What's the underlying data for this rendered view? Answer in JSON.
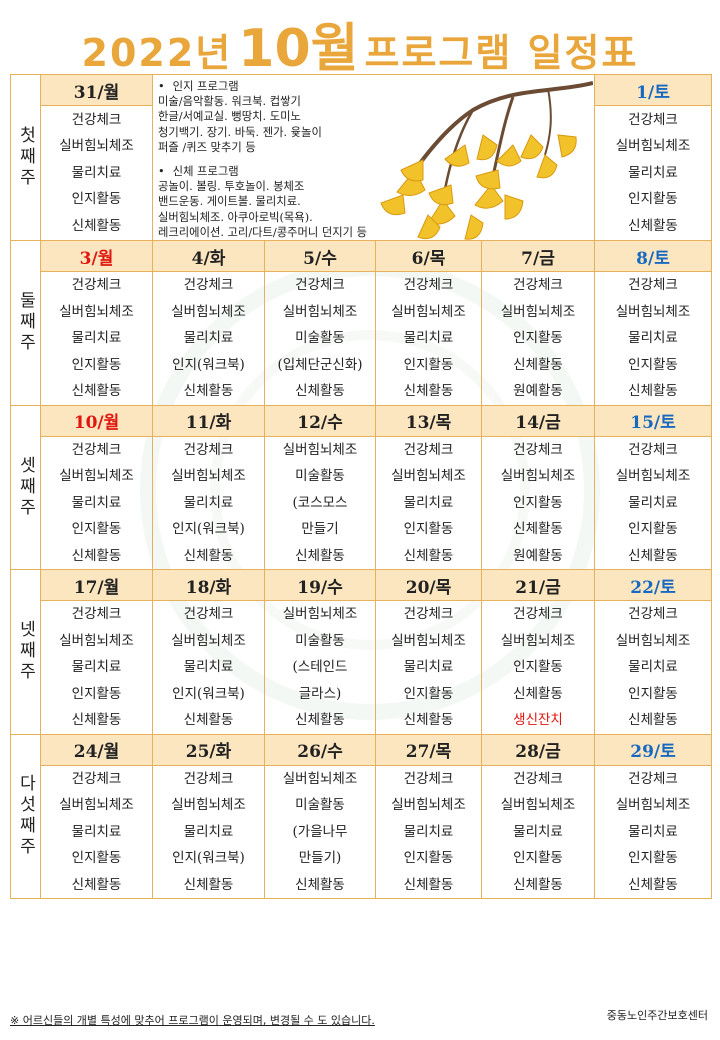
{
  "title": {
    "part1": "2022년",
    "part2": "10월",
    "part3": "프로그램 일정표"
  },
  "program_info": {
    "cognitive": {
      "heading": "인지 프로그램",
      "lines": [
        "미술/음악활동. 워크북. 컵쌓기",
        "한글/서예교실. 뻥땅치. 도미노",
        "청기백기. 장기. 바둑. 젠가. 윷놀이",
        "퍼즐 /퀴즈 맞추기 등"
      ]
    },
    "physical": {
      "heading": "신체 프로그램",
      "lines": [
        "공놀이. 볼링. 투호놀이. 봉체조",
        "밴드운동. 게이트볼. 물리치료.",
        "실버힘뇌체조. 아쿠아로빅(목욕).",
        "레크리에이션. 고리/다트/콩주머니 던지기 등"
      ]
    }
  },
  "weeks": [
    {
      "label": "첫째주",
      "days": [
        {
          "date": "31/월",
          "items": [
            "건강체크",
            "실버힘뇌체조",
            "물리치료",
            "인지활동",
            "신체활동"
          ]
        },
        {
          "date": "1/토",
          "items": [
            "건강체크",
            "실버힘뇌체조",
            "물리치료",
            "인지활동",
            "신체활동"
          ]
        }
      ]
    },
    {
      "label": "둘째주",
      "days": [
        {
          "date": "3/월",
          "items": [
            "건강체크",
            "실버힘뇌체조",
            "물리치료",
            "인지활동",
            "신체활동"
          ]
        },
        {
          "date": "4/화",
          "items": [
            "건강체크",
            "실버힘뇌체조",
            "물리치료",
            "인지(워크북)",
            "신체활동"
          ]
        },
        {
          "date": "5/수",
          "items": [
            "건강체크",
            "실버힘뇌체조",
            "미술활동",
            "(입체단군신화)",
            "신체활동"
          ]
        },
        {
          "date": "6/목",
          "items": [
            "건강체크",
            "실버힘뇌체조",
            "물리치료",
            "인지활동",
            "신체활동"
          ]
        },
        {
          "date": "7/금",
          "items": [
            "건강체크",
            "실버힘뇌체조",
            "인지활동",
            "신체활동",
            "원예활동"
          ]
        },
        {
          "date": "8/토",
          "items": [
            "건강체크",
            "실버힘뇌체조",
            "물리치료",
            "인지활동",
            "신체활동"
          ]
        }
      ]
    },
    {
      "label": "셋째주",
      "days": [
        {
          "date": "10/월",
          "items": [
            "건강체크",
            "실버힘뇌체조",
            "물리치료",
            "인지활동",
            "신체활동"
          ]
        },
        {
          "date": "11/화",
          "items": [
            "건강체크",
            "실버힘뇌체조",
            "물리치료",
            "인지(워크북)",
            "신체활동"
          ]
        },
        {
          "date": "12/수",
          "items": [
            "실버힘뇌체조",
            "미술활동",
            "(코스모스",
            "만들기",
            "신체활동"
          ]
        },
        {
          "date": "13/목",
          "items": [
            "건강체크",
            "실버힘뇌체조",
            "물리치료",
            "인지활동",
            "신체활동"
          ]
        },
        {
          "date": "14/금",
          "items": [
            "건강체크",
            "실버힘뇌체조",
            "인지활동",
            "신체활동",
            "원예활동"
          ]
        },
        {
          "date": "15/토",
          "items": [
            "건강체크",
            "실버힘뇌체조",
            "물리치료",
            "인지활동",
            "신체활동"
          ]
        }
      ]
    },
    {
      "label": "넷째주",
      "days": [
        {
          "date": "17/월",
          "items": [
            "건강체크",
            "실버힘뇌체조",
            "물리치료",
            "인지활동",
            "신체활동"
          ]
        },
        {
          "date": "18/화",
          "items": [
            "건강체크",
            "실버힘뇌체조",
            "물리치료",
            "인지(워크북)",
            "신체활동"
          ]
        },
        {
          "date": "19/수",
          "items": [
            "실버힘뇌체조",
            "미술활동",
            "(스테인드",
            "글라스)",
            "신체활동"
          ]
        },
        {
          "date": "20/목",
          "items": [
            "건강체크",
            "실버힘뇌체조",
            "물리치료",
            "인지활동",
            "신체활동"
          ]
        },
        {
          "date": "21/금",
          "items": [
            "건강체크",
            "실버힘뇌체조",
            "인지활동",
            "신체활동",
            "생신잔치"
          ]
        },
        {
          "date": "22/토",
          "items": [
            "건강체크",
            "실버힘뇌체조",
            "물리치료",
            "인지활동",
            "신체활동"
          ]
        }
      ]
    },
    {
      "label": "다섯째주",
      "days": [
        {
          "date": "24/월",
          "items": [
            "건강체크",
            "실버힘뇌체조",
            "물리치료",
            "인지활동",
            "신체활동"
          ]
        },
        {
          "date": "25/화",
          "items": [
            "건강체크",
            "실버힘뇌체조",
            "물리치료",
            "인지(워크북)",
            "신체활동"
          ]
        },
        {
          "date": "26/수",
          "items": [
            "실버힘뇌체조",
            "미술활동",
            "(가을나무",
            "만들기)",
            "신체활동"
          ]
        },
        {
          "date": "27/목",
          "items": [
            "건강체크",
            "실버힘뇌체조",
            "물리치료",
            "인지활동",
            "신체활동"
          ]
        },
        {
          "date": "28/금",
          "items": [
            "건강체크",
            "실버힘뇌체조",
            "물리치료",
            "인지활동",
            "신체활동"
          ]
        },
        {
          "date": "29/토",
          "items": [
            "건강체크",
            "실버힘뇌체조",
            "물리치료",
            "인지활동",
            "신체활동"
          ]
        }
      ]
    }
  ],
  "footer": {
    "note": "※ 어르신들의 개별 특성에 맞추어 프로그램이 운영되며, 변경될 수 도 있습니다.",
    "org": "중동노인주간보호센터"
  },
  "colors": {
    "title": "#e8a63b",
    "header_bg": "#fbe6bf",
    "border": "#e6b15a",
    "sunday": "#e0160f",
    "saturday": "#1769c2",
    "highlight": "#e0160f"
  }
}
